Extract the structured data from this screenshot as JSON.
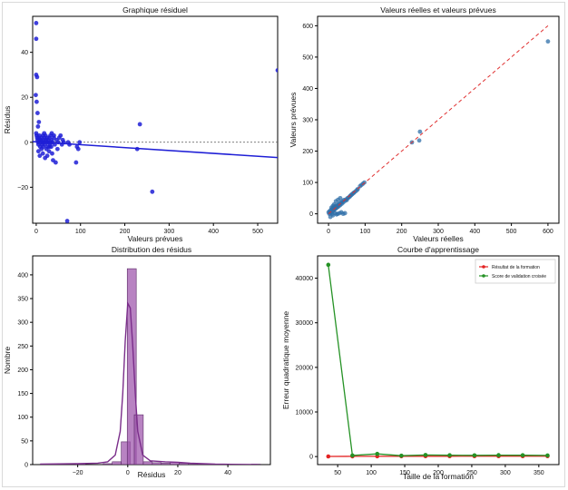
{
  "chart_data": [
    {
      "id": "residuals",
      "type": "scatter",
      "title": "Graphique résiduel",
      "xlabel": "Valeurs prévues",
      "ylabel": "Résidus",
      "xlim": [
        -8,
        545
      ],
      "ylim": [
        -36,
        56
      ],
      "xticks": [
        0,
        100,
        200,
        300,
        400,
        500
      ],
      "yticks": [
        -20,
        0,
        20,
        40
      ],
      "ytick_labels": [
        "−20",
        "0",
        "20",
        "40"
      ],
      "zero_line": 0,
      "regression_line": {
        "x": [
          -8,
          545
        ],
        "y": [
          0.3,
          -6.8
        ]
      },
      "point_color": "#1f1fd6",
      "points": [
        [
          0,
          53
        ],
        [
          0,
          46
        ],
        [
          0,
          30
        ],
        [
          2,
          29
        ],
        [
          -1,
          21
        ],
        [
          1,
          18
        ],
        [
          3,
          13
        ],
        [
          6,
          9
        ],
        [
          4,
          7
        ],
        [
          0,
          4
        ],
        [
          1,
          3
        ],
        [
          2,
          2
        ],
        [
          3,
          1
        ],
        [
          4,
          0
        ],
        [
          5,
          -1
        ],
        [
          6,
          2
        ],
        [
          7,
          3
        ],
        [
          8,
          1
        ],
        [
          9,
          -2
        ],
        [
          10,
          0
        ],
        [
          11,
          1
        ],
        [
          12,
          2
        ],
        [
          13,
          -1
        ],
        [
          14,
          0
        ],
        [
          15,
          3
        ],
        [
          16,
          -2
        ],
        [
          17,
          1
        ],
        [
          18,
          0
        ],
        [
          19,
          2
        ],
        [
          20,
          -1
        ],
        [
          21,
          3
        ],
        [
          22,
          1
        ],
        [
          23,
          -3
        ],
        [
          24,
          0
        ],
        [
          25,
          2
        ],
        [
          26,
          -2
        ],
        [
          27,
          1
        ],
        [
          28,
          0
        ],
        [
          29,
          -4
        ],
        [
          30,
          2
        ],
        [
          31,
          -1
        ],
        [
          32,
          3
        ],
        [
          33,
          0
        ],
        [
          34,
          -2
        ],
        [
          35,
          1
        ],
        [
          36,
          -5
        ],
        [
          37,
          0
        ],
        [
          38,
          -8
        ],
        [
          40,
          2
        ],
        [
          42,
          -1
        ],
        [
          44,
          -9
        ],
        [
          46,
          1
        ],
        [
          48,
          -3
        ],
        [
          50,
          0
        ],
        [
          52,
          2
        ],
        [
          55,
          3
        ],
        [
          58,
          -1
        ],
        [
          60,
          1
        ],
        [
          62,
          0
        ],
        [
          5,
          -4
        ],
        [
          8,
          -6
        ],
        [
          12,
          -3
        ],
        [
          15,
          -5
        ],
        [
          20,
          -7
        ],
        [
          25,
          -6
        ],
        [
          30,
          -2
        ],
        [
          35,
          4
        ],
        [
          40,
          3
        ],
        [
          18,
          4
        ],
        [
          70,
          -35
        ],
        [
          72,
          0
        ],
        [
          75,
          -1
        ],
        [
          90,
          -9
        ],
        [
          92,
          -2
        ],
        [
          95,
          -3
        ],
        [
          98,
          0
        ],
        [
          228,
          -3
        ],
        [
          234,
          8
        ],
        [
          262,
          -22
        ],
        [
          545,
          32
        ]
      ]
    },
    {
      "id": "actual_vs_predicted",
      "type": "scatter",
      "title": "Valeurs réelles et valeurs prévues",
      "xlabel": "Valeurs réelles",
      "ylabel": "Valeurs prévues",
      "xlim": [
        -30,
        630
      ],
      "ylim": [
        -30,
        630
      ],
      "xticks": [
        0,
        100,
        200,
        300,
        400,
        500,
        600
      ],
      "yticks": [
        0,
        100,
        200,
        300,
        400,
        500,
        600
      ],
      "identity_line": [
        0,
        600
      ],
      "identity_color": "#e03030",
      "point_color": "#2f6fa8",
      "points": [
        [
          0,
          5
        ],
        [
          2,
          0
        ],
        [
          3,
          8
        ],
        [
          5,
          2
        ],
        [
          6,
          12
        ],
        [
          8,
          6
        ],
        [
          10,
          15
        ],
        [
          11,
          9
        ],
        [
          12,
          18
        ],
        [
          14,
          10
        ],
        [
          15,
          20
        ],
        [
          16,
          14
        ],
        [
          18,
          22
        ],
        [
          19,
          16
        ],
        [
          20,
          25
        ],
        [
          22,
          19
        ],
        [
          24,
          27
        ],
        [
          25,
          22
        ],
        [
          27,
          30
        ],
        [
          28,
          24
        ],
        [
          30,
          33
        ],
        [
          32,
          28
        ],
        [
          34,
          36
        ],
        [
          36,
          32
        ],
        [
          38,
          40
        ],
        [
          40,
          36
        ],
        [
          42,
          44
        ],
        [
          45,
          41
        ],
        [
          48,
          46
        ],
        [
          50,
          44
        ],
        [
          52,
          50
        ],
        [
          55,
          52
        ],
        [
          58,
          55
        ],
        [
          60,
          58
        ],
        [
          62,
          60
        ],
        [
          65,
          63
        ],
        [
          68,
          66
        ],
        [
          70,
          68
        ],
        [
          74,
          72
        ],
        [
          78,
          76
        ],
        [
          80,
          79
        ],
        [
          86,
          88
        ],
        [
          90,
          92
        ],
        [
          94,
          96
        ],
        [
          98,
          100
        ],
        [
          10,
          0
        ],
        [
          18,
          2
        ],
        [
          22,
          -2
        ],
        [
          25,
          0
        ],
        [
          30,
          2
        ],
        [
          35,
          5
        ],
        [
          40,
          0
        ],
        [
          45,
          2
        ],
        [
          5,
          -10
        ],
        [
          12,
          -5
        ],
        [
          8,
          20
        ],
        [
          12,
          25
        ],
        [
          15,
          30
        ],
        [
          20,
          40
        ],
        [
          26,
          45
        ],
        [
          32,
          50
        ],
        [
          228,
          228
        ],
        [
          248,
          234
        ],
        [
          250,
          262
        ],
        [
          600,
          550
        ]
      ]
    },
    {
      "id": "residual_distribution",
      "type": "bar",
      "title": "Distribution des résidus",
      "xlabel": "Résidus",
      "ylabel": "Nombre",
      "xlim": [
        -38,
        57
      ],
      "ylim": [
        0,
        440
      ],
      "xticks": [
        -20,
        0,
        20,
        40
      ],
      "xtick_labels": [
        "−20",
        "0",
        "20",
        "40"
      ],
      "yticks": [
        0,
        50,
        100,
        150,
        200,
        250,
        300,
        350,
        400
      ],
      "bin_width": 3.6,
      "bins": [
        [
          -35,
          1
        ],
        [
          -31.4,
          0
        ],
        [
          -27.8,
          0
        ],
        [
          -24.2,
          0
        ],
        [
          -20.6,
          1
        ],
        [
          -17,
          0
        ],
        [
          -13.4,
          0
        ],
        [
          -9.8,
          2
        ],
        [
          -6.2,
          6
        ],
        [
          -2.6,
          48
        ],
        [
          -0.2,
          413
        ],
        [
          2.6,
          105
        ],
        [
          6.2,
          6
        ],
        [
          9.8,
          4
        ],
        [
          13.4,
          3
        ],
        [
          17,
          5
        ],
        [
          20.6,
          3
        ],
        [
          24.2,
          1
        ],
        [
          27.8,
          2
        ],
        [
          31.4,
          1
        ],
        [
          35,
          0
        ],
        [
          38.6,
          0
        ],
        [
          42.2,
          0
        ],
        [
          45.8,
          0
        ],
        [
          49.4,
          1
        ]
      ],
      "kde": [
        [
          -35,
          1
        ],
        [
          -20,
          2
        ],
        [
          -12,
          3
        ],
        [
          -8,
          6
        ],
        [
          -5,
          20
        ],
        [
          -3,
          70
        ],
        [
          -2,
          150
        ],
        [
          -1,
          260
        ],
        [
          0,
          340
        ],
        [
          1,
          330
        ],
        [
          2,
          250
        ],
        [
          3,
          150
        ],
        [
          4,
          70
        ],
        [
          6,
          20
        ],
        [
          9,
          8
        ],
        [
          15,
          6
        ],
        [
          20,
          5
        ],
        [
          25,
          3
        ],
        [
          35,
          1
        ],
        [
          52,
          0
        ]
      ],
      "bar_color": "#a05aad",
      "line_color": "#7a2d8a"
    },
    {
      "id": "learning_curve",
      "type": "line",
      "title": "Courbe d'apprentissage",
      "xlabel": "Taille de la formation",
      "ylabel": "Erreur quadratique moyenne",
      "xlim": [
        20,
        380
      ],
      "ylim": [
        -1800,
        45000
      ],
      "xticks": [
        50,
        100,
        150,
        200,
        250,
        300,
        350
      ],
      "yticks": [
        0,
        10000,
        20000,
        30000,
        40000
      ],
      "legend_position": "top-right",
      "x": [
        36,
        72,
        109,
        145,
        181,
        217,
        254,
        290,
        326,
        363
      ],
      "series": [
        {
          "name": "Résultat de la formation",
          "color": "#e32323",
          "values": [
            30,
            50,
            60,
            70,
            80,
            80,
            85,
            90,
            90,
            95
          ]
        },
        {
          "name": "Score de validation croisée",
          "color": "#259225",
          "values": [
            43000,
            250,
            600,
            200,
            350,
            300,
            280,
            320,
            300,
            250
          ]
        }
      ]
    }
  ]
}
